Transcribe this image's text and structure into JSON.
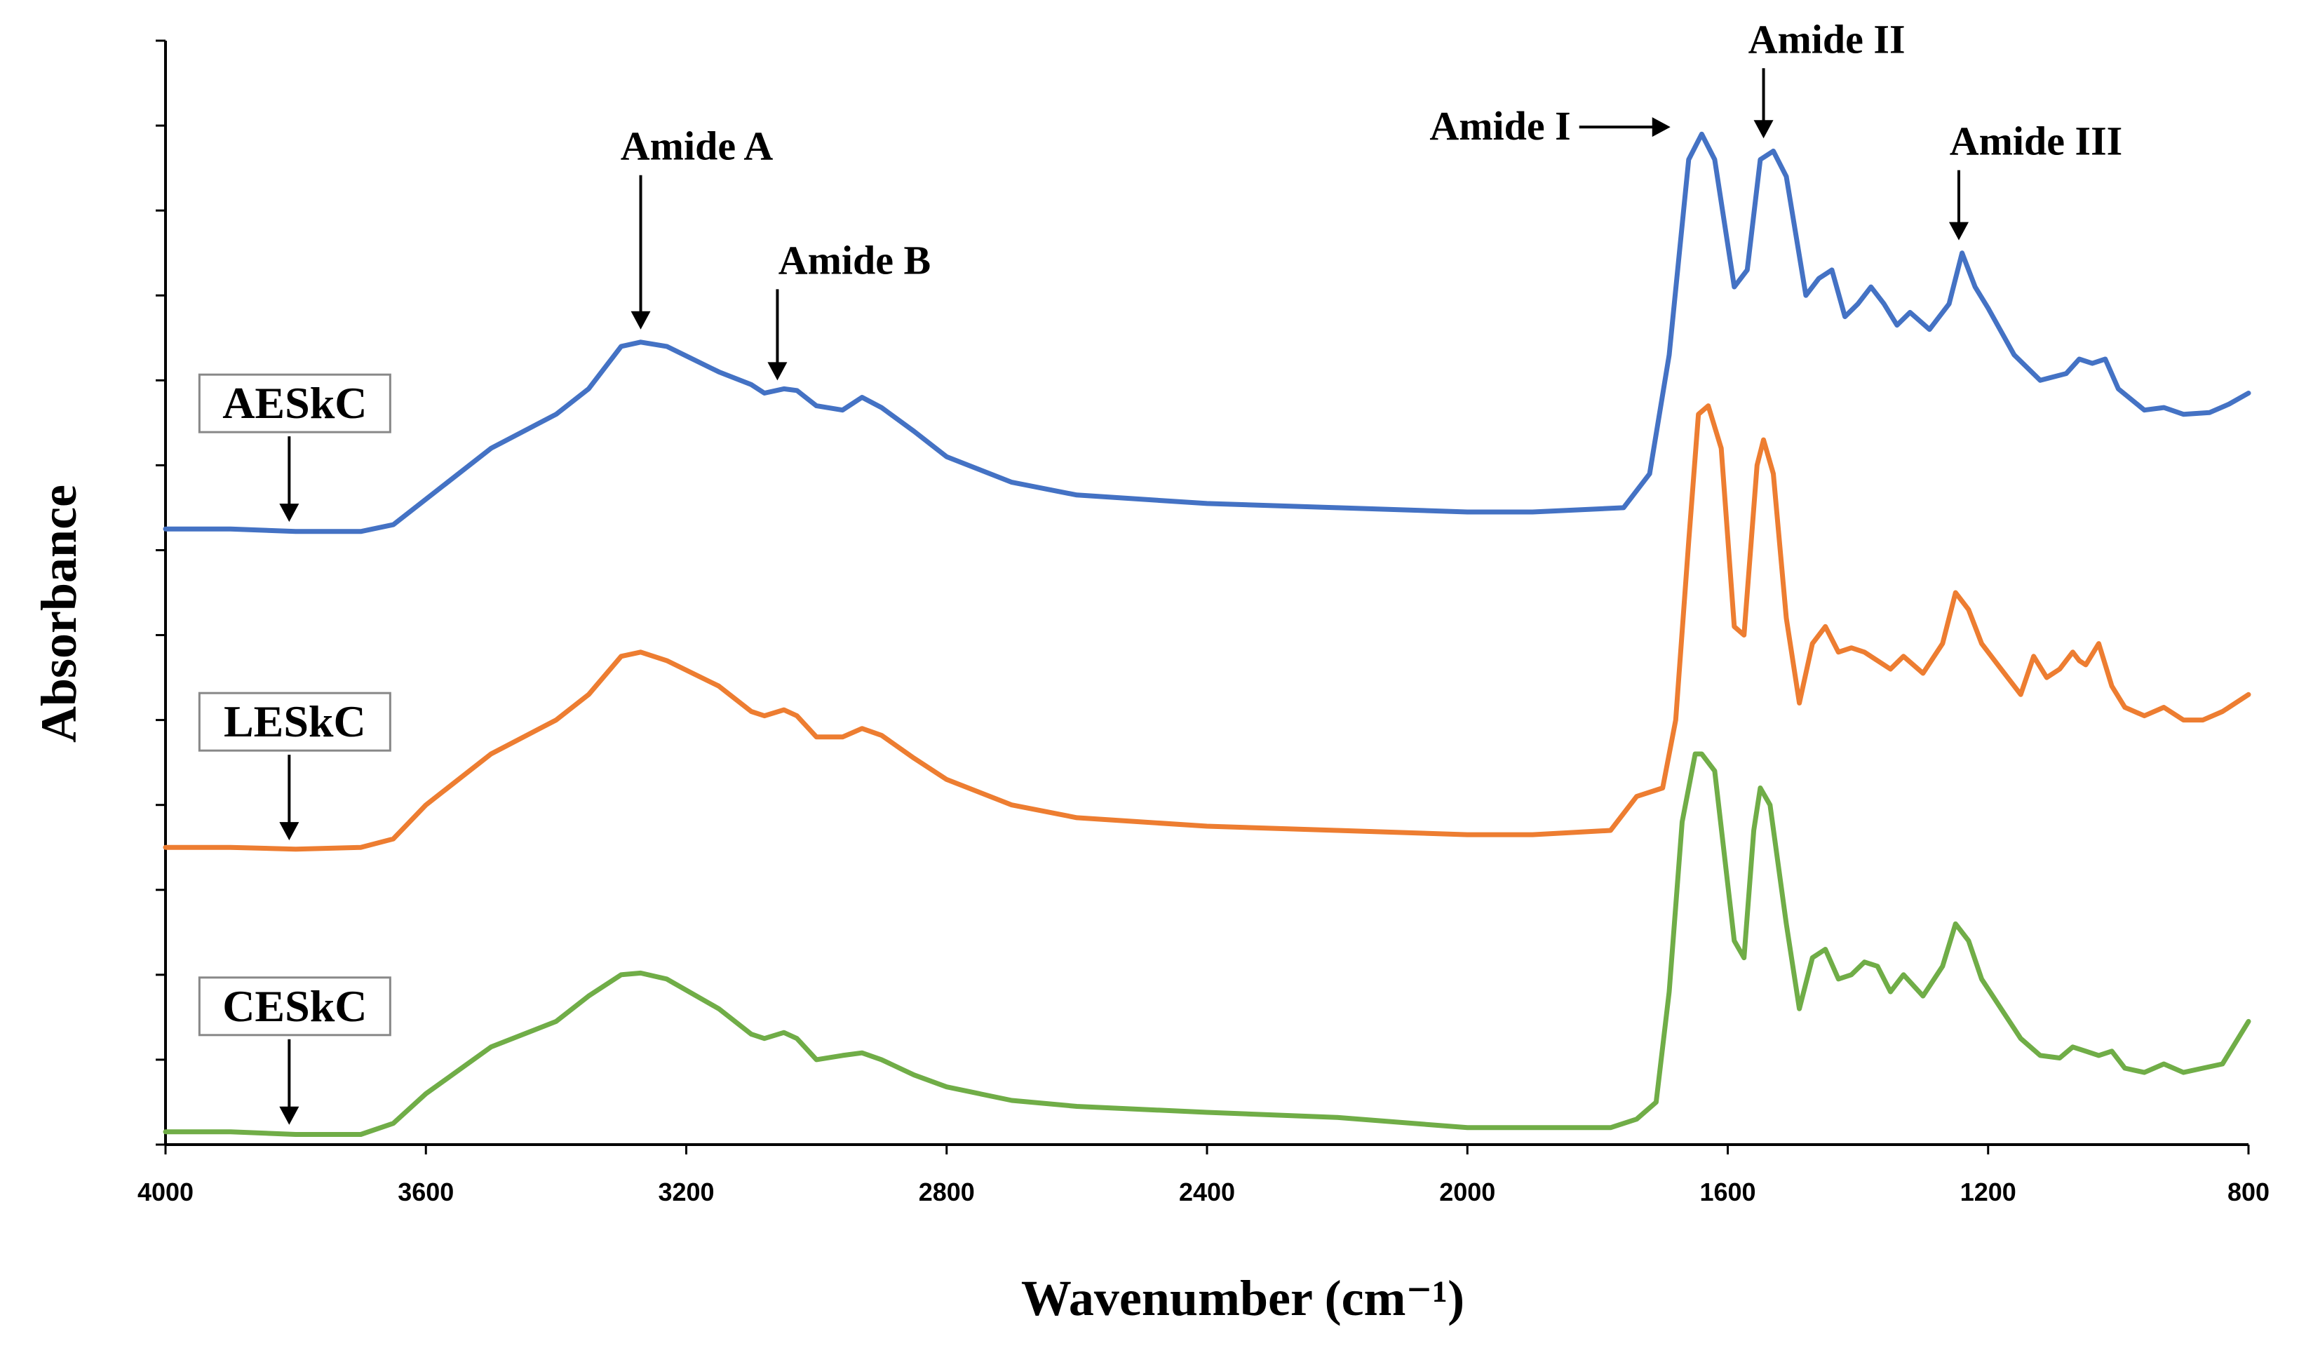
{
  "chart_data": {
    "type": "line",
    "title": "",
    "xlabel": "Wavenumber (cm⁻¹)",
    "ylabel": "Absorbance",
    "xlim": [
      4000,
      800
    ],
    "x_reversed": true,
    "x_ticks": [
      4000,
      3600,
      3200,
      2800,
      2400,
      2000,
      1600,
      1200,
      800
    ],
    "y_ticks": [
      0,
      1,
      2,
      3,
      4,
      5,
      6,
      7,
      8,
      9,
      10,
      11,
      12,
      13
    ],
    "ylim": [
      0,
      13
    ],
    "y_units": "arbitrary (stacked, offset spectra)",
    "grid": false,
    "series": [
      {
        "name": "AESkC",
        "color": "#4472C4",
        "points": [
          [
            4000,
            7.25
          ],
          [
            3900,
            7.25
          ],
          [
            3800,
            7.22
          ],
          [
            3700,
            7.22
          ],
          [
            3650,
            7.3
          ],
          [
            3600,
            7.6
          ],
          [
            3500,
            8.2
          ],
          [
            3400,
            8.6
          ],
          [
            3350,
            8.9
          ],
          [
            3300,
            9.4
          ],
          [
            3270,
            9.45
          ],
          [
            3230,
            9.4
          ],
          [
            3150,
            9.1
          ],
          [
            3100,
            8.95
          ],
          [
            3080,
            8.85
          ],
          [
            3050,
            8.9
          ],
          [
            3030,
            8.88
          ],
          [
            3000,
            8.7
          ],
          [
            2960,
            8.65
          ],
          [
            2930,
            8.8
          ],
          [
            2900,
            8.68
          ],
          [
            2850,
            8.4
          ],
          [
            2800,
            8.1
          ],
          [
            2700,
            7.8
          ],
          [
            2600,
            7.65
          ],
          [
            2400,
            7.55
          ],
          [
            2200,
            7.5
          ],
          [
            2000,
            7.45
          ],
          [
            1900,
            7.45
          ],
          [
            1760,
            7.5
          ],
          [
            1720,
            7.9
          ],
          [
            1690,
            9.3
          ],
          [
            1660,
            11.6
          ],
          [
            1640,
            11.9
          ],
          [
            1620,
            11.6
          ],
          [
            1590,
            10.1
          ],
          [
            1570,
            10.3
          ],
          [
            1550,
            11.6
          ],
          [
            1530,
            11.7
          ],
          [
            1510,
            11.4
          ],
          [
            1480,
            10.0
          ],
          [
            1460,
            10.2
          ],
          [
            1440,
            10.3
          ],
          [
            1420,
            9.75
          ],
          [
            1400,
            9.9
          ],
          [
            1380,
            10.1
          ],
          [
            1360,
            9.9
          ],
          [
            1340,
            9.65
          ],
          [
            1320,
            9.8
          ],
          [
            1290,
            9.6
          ],
          [
            1260,
            9.9
          ],
          [
            1240,
            10.5
          ],
          [
            1220,
            10.1
          ],
          [
            1200,
            9.85
          ],
          [
            1160,
            9.3
          ],
          [
            1120,
            9.0
          ],
          [
            1080,
            9.08
          ],
          [
            1060,
            9.25
          ],
          [
            1040,
            9.2
          ],
          [
            1020,
            9.25
          ],
          [
            1000,
            8.9
          ],
          [
            960,
            8.65
          ],
          [
            930,
            8.68
          ],
          [
            900,
            8.6
          ],
          [
            860,
            8.62
          ],
          [
            830,
            8.72
          ],
          [
            800,
            8.85
          ]
        ]
      },
      {
        "name": "LESkC",
        "color": "#ED7D31",
        "points": [
          [
            4000,
            3.5
          ],
          [
            3900,
            3.5
          ],
          [
            3800,
            3.48
          ],
          [
            3700,
            3.5
          ],
          [
            3650,
            3.6
          ],
          [
            3600,
            4.0
          ],
          [
            3500,
            4.6
          ],
          [
            3400,
            5.0
          ],
          [
            3350,
            5.3
          ],
          [
            3300,
            5.75
          ],
          [
            3270,
            5.8
          ],
          [
            3230,
            5.7
          ],
          [
            3150,
            5.4
          ],
          [
            3100,
            5.1
          ],
          [
            3080,
            5.05
          ],
          [
            3050,
            5.12
          ],
          [
            3030,
            5.05
          ],
          [
            3000,
            4.8
          ],
          [
            2960,
            4.8
          ],
          [
            2930,
            4.9
          ],
          [
            2900,
            4.82
          ],
          [
            2850,
            4.55
          ],
          [
            2800,
            4.3
          ],
          [
            2700,
            4.0
          ],
          [
            2600,
            3.85
          ],
          [
            2400,
            3.75
          ],
          [
            2200,
            3.7
          ],
          [
            2000,
            3.65
          ],
          [
            1900,
            3.65
          ],
          [
            1780,
            3.7
          ],
          [
            1740,
            4.1
          ],
          [
            1700,
            4.2
          ],
          [
            1680,
            5.0
          ],
          [
            1660,
            7.1
          ],
          [
            1645,
            8.6
          ],
          [
            1630,
            8.7
          ],
          [
            1610,
            8.2
          ],
          [
            1590,
            6.1
          ],
          [
            1575,
            6.0
          ],
          [
            1555,
            8.0
          ],
          [
            1545,
            8.3
          ],
          [
            1530,
            7.9
          ],
          [
            1510,
            6.2
          ],
          [
            1490,
            5.2
          ],
          [
            1470,
            5.9
          ],
          [
            1450,
            6.1
          ],
          [
            1430,
            5.8
          ],
          [
            1410,
            5.85
          ],
          [
            1390,
            5.8
          ],
          [
            1370,
            5.7
          ],
          [
            1350,
            5.6
          ],
          [
            1330,
            5.75
          ],
          [
            1300,
            5.55
          ],
          [
            1270,
            5.9
          ],
          [
            1250,
            6.5
          ],
          [
            1230,
            6.3
          ],
          [
            1210,
            5.9
          ],
          [
            1180,
            5.6
          ],
          [
            1150,
            5.3
          ],
          [
            1130,
            5.75
          ],
          [
            1110,
            5.5
          ],
          [
            1090,
            5.6
          ],
          [
            1070,
            5.8
          ],
          [
            1060,
            5.7
          ],
          [
            1050,
            5.65
          ],
          [
            1030,
            5.9
          ],
          [
            1010,
            5.4
          ],
          [
            990,
            5.15
          ],
          [
            960,
            5.05
          ],
          [
            930,
            5.15
          ],
          [
            900,
            5.0
          ],
          [
            870,
            5.0
          ],
          [
            840,
            5.1
          ],
          [
            800,
            5.3
          ]
        ]
      },
      {
        "name": "CESkC",
        "color": "#70AD47",
        "points": [
          [
            4000,
            0.15
          ],
          [
            3900,
            0.15
          ],
          [
            3800,
            0.12
          ],
          [
            3700,
            0.12
          ],
          [
            3650,
            0.25
          ],
          [
            3600,
            0.6
          ],
          [
            3500,
            1.15
          ],
          [
            3400,
            1.45
          ],
          [
            3350,
            1.75
          ],
          [
            3300,
            2.0
          ],
          [
            3270,
            2.02
          ],
          [
            3230,
            1.95
          ],
          [
            3150,
            1.6
          ],
          [
            3100,
            1.3
          ],
          [
            3080,
            1.25
          ],
          [
            3050,
            1.32
          ],
          [
            3030,
            1.25
          ],
          [
            3000,
            1.0
          ],
          [
            2960,
            1.05
          ],
          [
            2930,
            1.08
          ],
          [
            2900,
            1.0
          ],
          [
            2850,
            0.82
          ],
          [
            2800,
            0.68
          ],
          [
            2700,
            0.52
          ],
          [
            2600,
            0.45
          ],
          [
            2400,
            0.38
          ],
          [
            2200,
            0.32
          ],
          [
            2000,
            0.2
          ],
          [
            1900,
            0.2
          ],
          [
            1780,
            0.2
          ],
          [
            1740,
            0.3
          ],
          [
            1710,
            0.5
          ],
          [
            1690,
            1.8
          ],
          [
            1670,
            3.8
          ],
          [
            1650,
            4.6
          ],
          [
            1640,
            4.6
          ],
          [
            1620,
            4.4
          ],
          [
            1590,
            2.4
          ],
          [
            1575,
            2.2
          ],
          [
            1560,
            3.7
          ],
          [
            1550,
            4.2
          ],
          [
            1535,
            4.0
          ],
          [
            1510,
            2.6
          ],
          [
            1490,
            1.6
          ],
          [
            1470,
            2.2
          ],
          [
            1450,
            2.3
          ],
          [
            1430,
            1.95
          ],
          [
            1410,
            2.0
          ],
          [
            1390,
            2.15
          ],
          [
            1370,
            2.1
          ],
          [
            1350,
            1.8
          ],
          [
            1330,
            2.0
          ],
          [
            1300,
            1.75
          ],
          [
            1270,
            2.1
          ],
          [
            1250,
            2.6
          ],
          [
            1230,
            2.4
          ],
          [
            1210,
            1.95
          ],
          [
            1180,
            1.6
          ],
          [
            1150,
            1.25
          ],
          [
            1120,
            1.05
          ],
          [
            1090,
            1.02
          ],
          [
            1070,
            1.15
          ],
          [
            1050,
            1.1
          ],
          [
            1030,
            1.05
          ],
          [
            1010,
            1.1
          ],
          [
            990,
            0.9
          ],
          [
            960,
            0.85
          ],
          [
            930,
            0.95
          ],
          [
            900,
            0.85
          ],
          [
            870,
            0.9
          ],
          [
            840,
            0.95
          ],
          [
            800,
            1.45
          ]
        ]
      }
    ],
    "annotations": [
      {
        "text": "Amide A",
        "x": 3270,
        "y": 9.55,
        "series": "AESkC"
      },
      {
        "text": "Amide B",
        "x": 3060,
        "y": 8.95,
        "series": "AESkC"
      },
      {
        "text": "Amide I",
        "x": 1645,
        "y": 11.9,
        "series": "AESkC",
        "arrow": "right"
      },
      {
        "text": "Amide II",
        "x": 1545,
        "y": 11.8,
        "series": "AESkC"
      },
      {
        "text": "Amide III",
        "x": 1245,
        "y": 10.6,
        "series": "AESkC"
      }
    ],
    "series_labels": [
      {
        "text": "AESkC",
        "x": 3810,
        "y": 7.3
      },
      {
        "text": "LESkC",
        "x": 3810,
        "y": 3.55
      },
      {
        "text": "CESkC",
        "x": 3810,
        "y": 0.2
      }
    ]
  }
}
